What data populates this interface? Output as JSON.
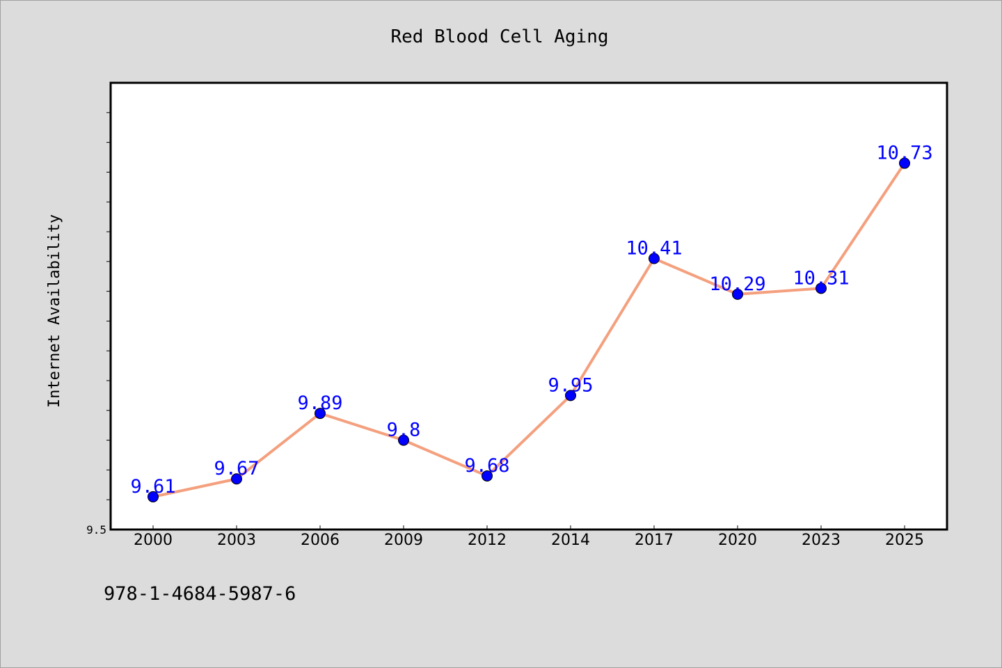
{
  "chart_data": {
    "type": "line",
    "title": "Red Blood Cell Aging",
    "xlabel": "",
    "ylabel": "Internet Availability",
    "categories": [
      "2000",
      "2003",
      "2006",
      "2009",
      "2012",
      "2014",
      "2017",
      "2020",
      "2023",
      "2025"
    ],
    "series": [
      {
        "values": [
          9.61,
          9.67,
          9.89,
          9.8,
          9.68,
          9.95,
          10.41,
          10.29,
          10.31,
          10.73
        ],
        "labels": [
          "9.61",
          "9.67",
          "9.89",
          "9.8",
          "9.68",
          "9.95",
          "10.41",
          "10.29",
          "10.31",
          "10.73"
        ]
      }
    ],
    "ylim": [
      9.5,
      11.0
    ],
    "ytick_labels": [
      "9.5"
    ],
    "grid": false,
    "colors": {
      "line": "#f4a07e",
      "marker": "#0000ff",
      "data_label": "#0000ff",
      "plot_background": "#ffffff",
      "figure_background": "#dcdcdc"
    }
  },
  "footer": {
    "isbn": "978-1-4684-5987-6"
  }
}
